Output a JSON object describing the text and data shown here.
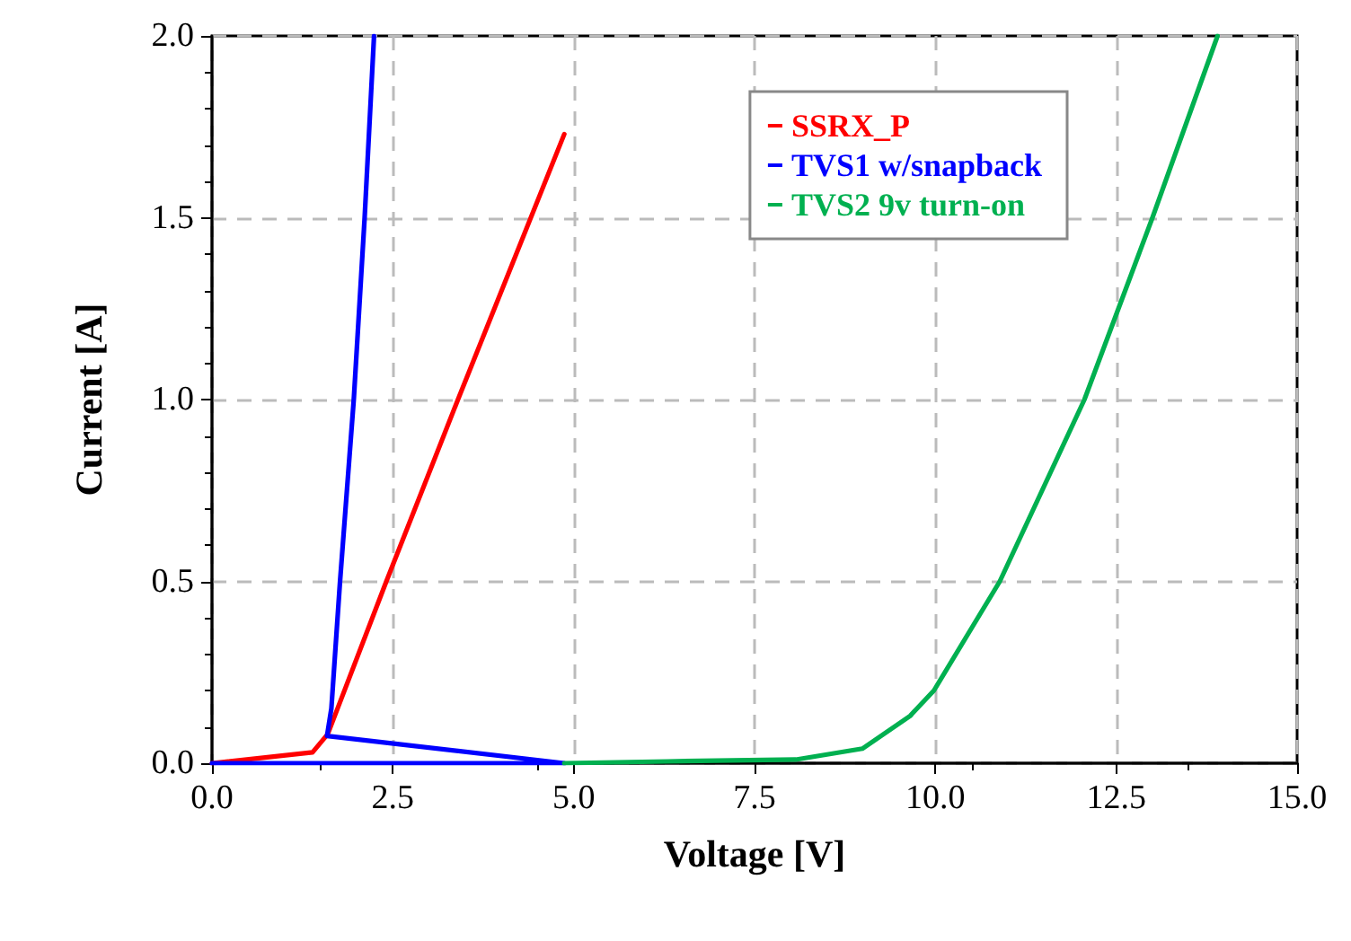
{
  "chart_data": {
    "type": "line",
    "xlabel": "Voltage [V]",
    "ylabel": "Current [A]",
    "xlim": [
      0,
      15
    ],
    "ylim": [
      0,
      2
    ],
    "xticks": [
      {
        "value": 0,
        "label": "0.0"
      },
      {
        "value": 2.5,
        "label": "2.5"
      },
      {
        "value": 5,
        "label": "5.0"
      },
      {
        "value": 7.5,
        "label": "7.5"
      },
      {
        "value": 10,
        "label": "10.0"
      },
      {
        "value": 12.5,
        "label": "12.5"
      },
      {
        "value": 15,
        "label": "15.0"
      }
    ],
    "yticks": [
      {
        "value": 0,
        "label": "0.0"
      },
      {
        "value": 0.5,
        "label": "0.5"
      },
      {
        "value": 1,
        "label": "1.0"
      },
      {
        "value": 1.5,
        "label": "1.5"
      },
      {
        "value": 2,
        "label": "2.0"
      }
    ],
    "grid": true,
    "legend": "top right",
    "marker": "none",
    "line_style": "solid",
    "series": [
      {
        "name": "SSRX_P",
        "color": "#ff0000",
        "x": [
          0,
          1.39,
          1.6,
          2.41,
          3.4,
          4.87
        ],
        "values": [
          0,
          0.03,
          0.08,
          0.5,
          1.0,
          1.73
        ]
      },
      {
        "name": "TVS1 w/snapback",
        "color": "#0000ff",
        "x": [
          0,
          4.87,
          1.59,
          1.65,
          1.77,
          1.96,
          2.11,
          2.24
        ],
        "values": [
          0,
          0,
          0.075,
          0.15,
          0.5,
          1.0,
          1.5,
          2.0
        ]
      },
      {
        "name": "TVS2 9v turn-on",
        "color": "#00b050",
        "x": [
          4.87,
          6.3,
          8.07,
          8.99,
          9.65,
          9.98,
          10.89,
          12.06,
          13.0,
          13.9
        ],
        "values": [
          0,
          0.005,
          0.01,
          0.04,
          0.13,
          0.2,
          0.5,
          1.0,
          1.5,
          2.0
        ]
      }
    ]
  }
}
